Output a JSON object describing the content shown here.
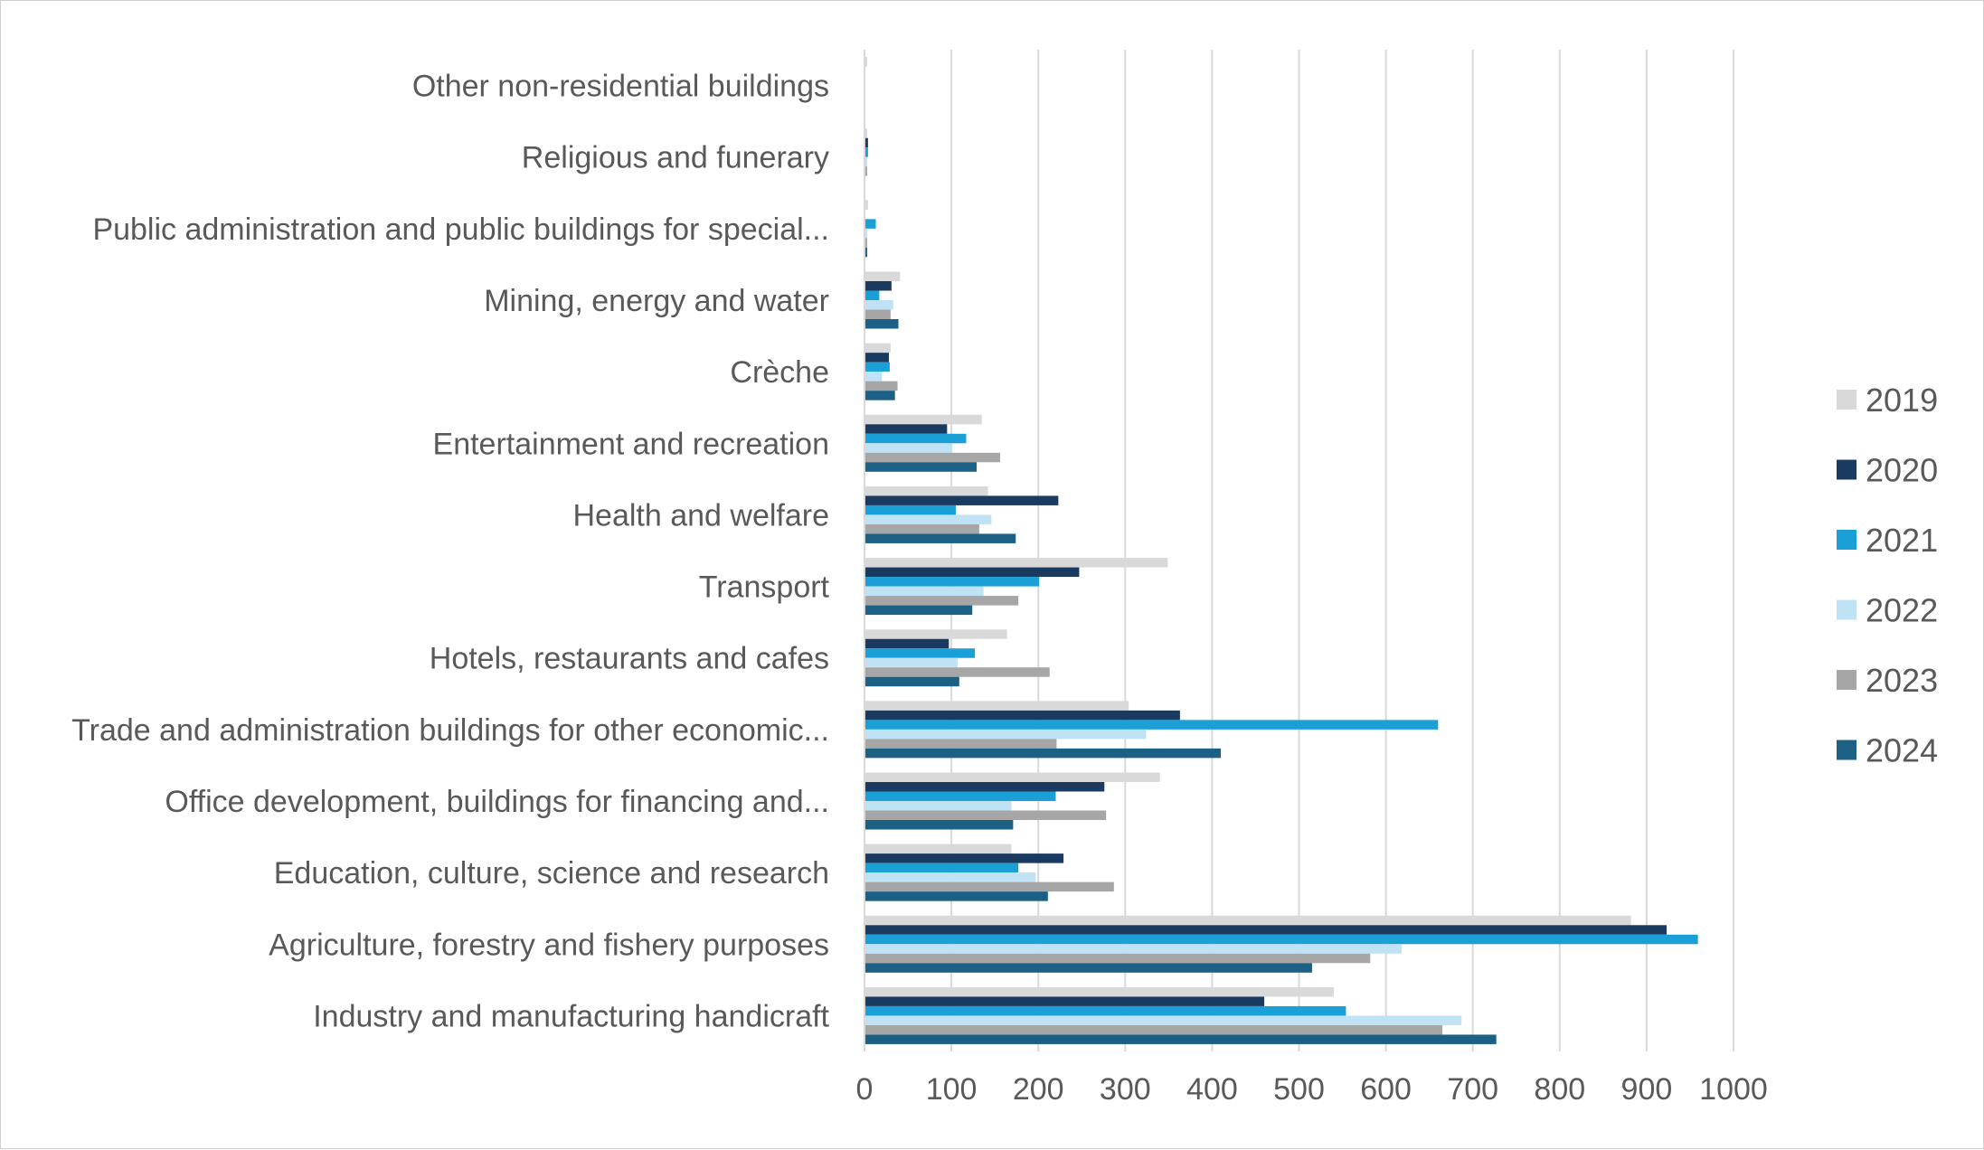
{
  "chart_data": {
    "type": "bar",
    "orientation": "horizontal",
    "title": "",
    "xlabel": "",
    "ylabel": "",
    "xlim": [
      0,
      1000
    ],
    "x_ticks": [
      0,
      100,
      200,
      300,
      400,
      500,
      600,
      700,
      800,
      900,
      1000
    ],
    "grid": "vertical gridlines on",
    "legend_position": "right",
    "categories": [
      "Other non-residential buildings",
      "Religious and funerary",
      "Public administration and public buildings for special...",
      "Mining, energy and water",
      "Crèche",
      "Entertainment and recreation",
      "Health and welfare",
      "Transport",
      "Hotels, restaurants and cafes",
      "Trade and administration buildings for other economic...",
      "Office development, buildings for financing and...",
      "Education, culture, science and research",
      "Agriculture, forestry and fishery purposes",
      "Industry and manufacturing handicraft"
    ],
    "series": [
      {
        "name": "2019",
        "color": "#d9d9d9",
        "values": [
          2,
          2,
          3,
          40,
          29,
          134,
          141,
          348,
          163,
          303,
          339,
          168,
          881,
          539
        ]
      },
      {
        "name": "2020",
        "color": "#1b3a60",
        "values": [
          0,
          3,
          0,
          30,
          27,
          94,
          222,
          246,
          96,
          362,
          275,
          228,
          922,
          459
        ]
      },
      {
        "name": "2021",
        "color": "#1a9fd6",
        "values": [
          0,
          3,
          12,
          16,
          28,
          116,
          104,
          200,
          126,
          659,
          219,
          176,
          958,
          553
        ]
      },
      {
        "name": "2022",
        "color": "#bfe3f5",
        "values": [
          0,
          2,
          2,
          32,
          19,
          100,
          145,
          136,
          106,
          323,
          168,
          196,
          617,
          686
        ]
      },
      {
        "name": "2023",
        "color": "#a6a6a6",
        "values": [
          0,
          2,
          2,
          29,
          37,
          155,
          131,
          176,
          212,
          220,
          277,
          286,
          581,
          664
        ]
      },
      {
        "name": "2024",
        "color": "#1d6085",
        "values": [
          0,
          0,
          2,
          38,
          34,
          128,
          173,
          123,
          108,
          409,
          170,
          210,
          514,
          726
        ]
      }
    ]
  }
}
